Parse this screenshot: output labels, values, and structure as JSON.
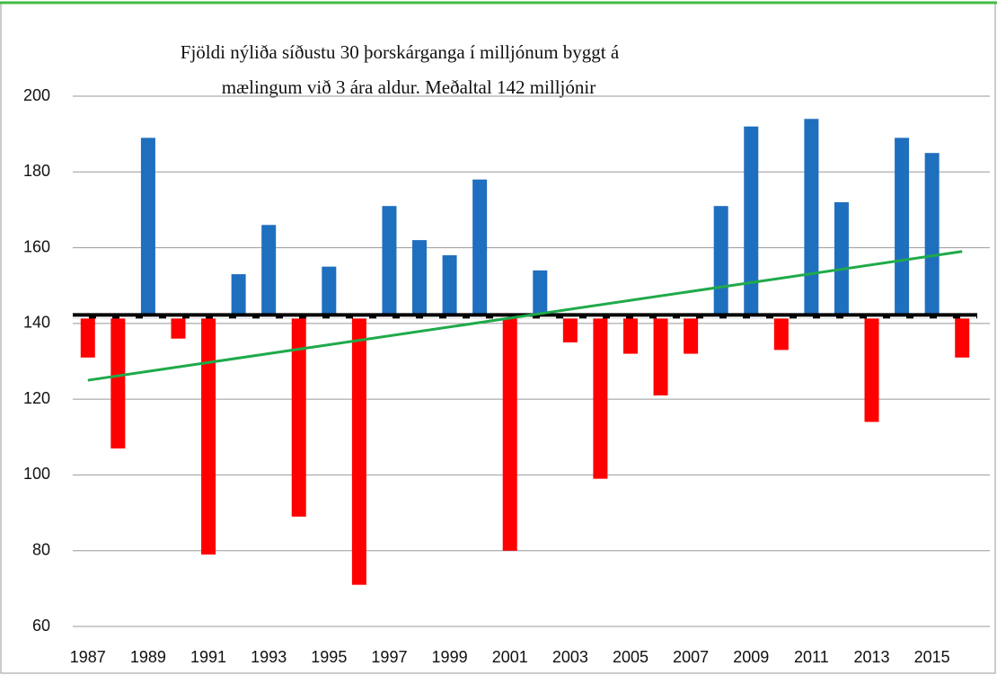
{
  "chart_data": {
    "type": "bar",
    "title_lines": [
      "Fjöldi nýliða síðustu 30 þorskárganga í milljónum byggt á",
      "mælingum við 3 ára aldur.  Meðaltal 142 milljónir"
    ],
    "categories": [
      "1987",
      null,
      "1989",
      null,
      "1991",
      null,
      "1993",
      null,
      "1995",
      null,
      "1997",
      null,
      "1999",
      null,
      "2001",
      null,
      "2003",
      null,
      "2005",
      null,
      "2007",
      null,
      "2009",
      null,
      "2011",
      null,
      "2013",
      null,
      "2015",
      null
    ],
    "values": [
      131,
      107,
      189,
      136,
      79,
      153,
      166,
      89,
      155,
      71,
      171,
      162,
      158,
      178,
      80,
      154,
      135,
      99,
      132,
      121,
      132,
      171,
      192,
      133,
      194,
      172,
      114,
      189,
      185,
      131
    ],
    "baseline": 142,
    "above_color": "#1f6fbf",
    "below_color": "#ff0000",
    "trendline": {
      "color": "#1faa4a",
      "start": 125,
      "end": 159
    },
    "ylim": [
      60,
      200
    ],
    "yticks": [
      60,
      80,
      100,
      120,
      140,
      160,
      180,
      200
    ],
    "grid": true
  }
}
